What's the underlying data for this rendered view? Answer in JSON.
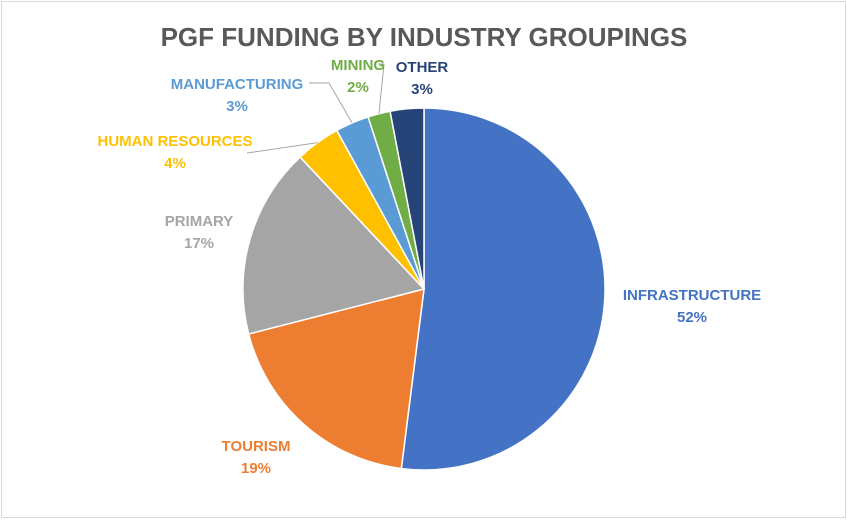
{
  "chart_data": {
    "type": "pie",
    "title": "PGF FUNDING BY INDUSTRY GROUPINGS",
    "slices": [
      {
        "name": "INFRASTRUCTURE",
        "value": 52,
        "label": "52%",
        "color": "#4472C4"
      },
      {
        "name": "TOURISM",
        "value": 19,
        "label": "19%",
        "color": "#ED7D31"
      },
      {
        "name": "PRIMARY",
        "value": 17,
        "label": "17%",
        "color": "#A5A5A5"
      },
      {
        "name": "HUMAN RESOURCES",
        "value": 4,
        "label": "4%",
        "color": "#FFC000"
      },
      {
        "name": "MANUFACTURING",
        "value": 3,
        "label": "3%",
        "color": "#5B9BD5"
      },
      {
        "name": "MINING",
        "value": 2,
        "label": "2%",
        "color": "#70AD47"
      },
      {
        "name": "OTHER",
        "value": 3,
        "label": "3%",
        "color": "#264478"
      }
    ],
    "start_angle_deg": 0,
    "direction": "clockwise",
    "legend": "none"
  }
}
